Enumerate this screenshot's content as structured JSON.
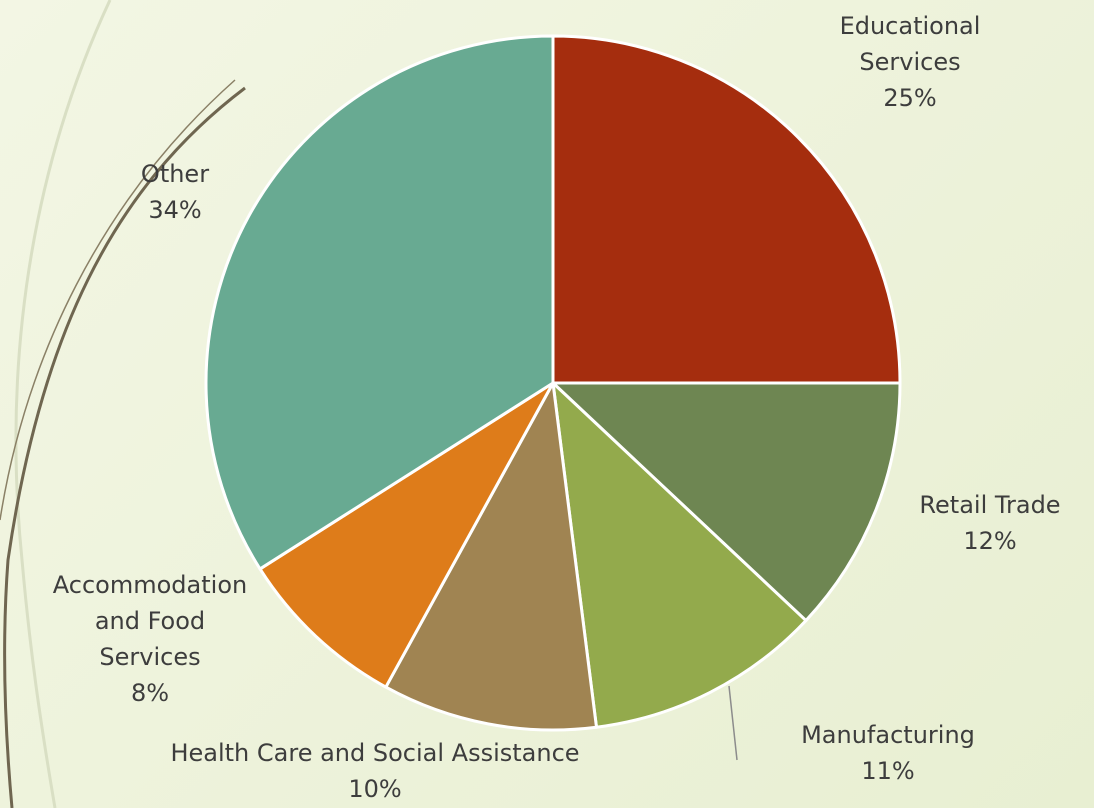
{
  "chart_data": {
    "type": "pie",
    "slices": [
      {
        "label": "Educational Services",
        "value": 25,
        "value_label": "25%",
        "color": "#a52d0e"
      },
      {
        "label": "Retail Trade",
        "value": 12,
        "value_label": "12%",
        "color": "#6e8652"
      },
      {
        "label": "Manufacturing",
        "value": 11,
        "value_label": "11%",
        "color": "#93aa4c"
      },
      {
        "label": "Health Care and Social Assistance",
        "value": 10,
        "value_label": "10%",
        "color": "#a08452"
      },
      {
        "label": "Accommodation and Food Services",
        "value": 8,
        "value_label": "8%",
        "color": "#de7c1a"
      },
      {
        "label": "Other",
        "value": 34,
        "value_label": "34%",
        "color": "#68aa92"
      }
    ],
    "labels_display": {
      "educational": [
        "Educational",
        "Services"
      ],
      "retail": [
        "Retail Trade"
      ],
      "manufacturing": [
        "Manufacturing"
      ],
      "health": [
        "Health Care and Social Assistance"
      ],
      "accommodation": [
        "Accommodation",
        "and Food",
        "Services"
      ],
      "other": [
        "Other"
      ]
    }
  }
}
